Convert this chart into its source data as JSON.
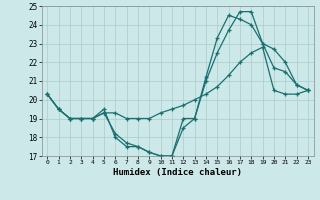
{
  "xlabel": "Humidex (Indice chaleur)",
  "ylabel": "",
  "bg_color": "#cce8e8",
  "grid_color": "#aacccc",
  "line_color": "#1a7070",
  "xlim": [
    -0.5,
    23.5
  ],
  "ylim": [
    17,
    25
  ],
  "yticks": [
    17,
    18,
    19,
    20,
    21,
    22,
    23,
    24,
    25
  ],
  "xticks": [
    0,
    1,
    2,
    3,
    4,
    5,
    6,
    7,
    8,
    9,
    10,
    11,
    12,
    13,
    14,
    15,
    16,
    17,
    18,
    19,
    20,
    21,
    22,
    23
  ],
  "series": [
    [
      20.3,
      19.5,
      19.0,
      19.0,
      19.0,
      19.5,
      18.0,
      17.5,
      17.5,
      17.2,
      17.0,
      17.0,
      18.5,
      19.0,
      21.0,
      22.5,
      23.7,
      24.7,
      24.7,
      23.0,
      22.7,
      22.0,
      20.8,
      20.5
    ],
    [
      20.3,
      19.5,
      19.0,
      19.0,
      19.0,
      19.3,
      19.3,
      19.0,
      19.0,
      19.0,
      19.3,
      19.5,
      19.7,
      20.0,
      20.3,
      20.7,
      21.3,
      22.0,
      22.5,
      22.8,
      20.5,
      20.3,
      20.3,
      20.5
    ],
    [
      20.3,
      19.5,
      19.0,
      19.0,
      19.0,
      19.3,
      18.2,
      17.7,
      17.5,
      17.2,
      17.0,
      17.0,
      19.0,
      19.0,
      21.2,
      23.3,
      24.5,
      24.3,
      24.0,
      23.0,
      21.7,
      21.5,
      20.8,
      20.5
    ]
  ]
}
